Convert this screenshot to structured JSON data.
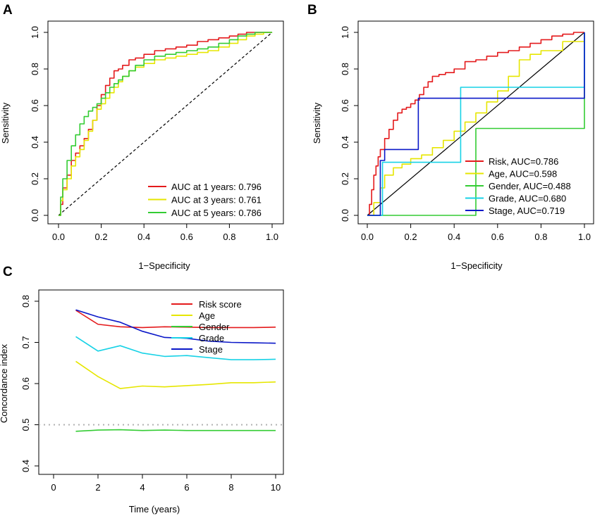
{
  "panels": {
    "A": {
      "letter": "A"
    },
    "B": {
      "letter": "B"
    },
    "C": {
      "letter": "C"
    }
  },
  "colors": {
    "red": "#e41a1c",
    "yellow": "#e6e600",
    "green": "#33cc33",
    "cyan": "#17d2e6",
    "blue": "#0a17c8",
    "gray": "#b0b0b0"
  },
  "chart_data": [
    {
      "id": "A",
      "type": "line",
      "title": "",
      "xlabel": "1−Specificity",
      "ylabel": "Sensitivity",
      "xlim": [
        0,
        1
      ],
      "ylim": [
        0,
        1
      ],
      "xticks": [
        "0.0",
        "0.2",
        "0.4",
        "0.6",
        "0.8",
        "1.0"
      ],
      "yticks": [
        "0.0",
        "0.2",
        "0.4",
        "0.6",
        "0.8",
        "1.0"
      ],
      "diagonal": "dashed",
      "legend_position": "bottom-right",
      "series": [
        {
          "name": "AUC at 1 years: 0.796",
          "color": "red",
          "x": [
            0,
            0.01,
            0.02,
            0.04,
            0.06,
            0.08,
            0.1,
            0.12,
            0.14,
            0.16,
            0.18,
            0.2,
            0.22,
            0.24,
            0.26,
            0.28,
            0.3,
            0.33,
            0.36,
            0.4,
            0.45,
            0.5,
            0.55,
            0.6,
            0.65,
            0.7,
            0.75,
            0.8,
            0.84,
            0.88,
            0.92,
            0.96,
            1.0
          ],
          "y": [
            0,
            0.06,
            0.15,
            0.22,
            0.3,
            0.34,
            0.38,
            0.42,
            0.47,
            0.52,
            0.6,
            0.66,
            0.71,
            0.75,
            0.79,
            0.8,
            0.82,
            0.85,
            0.86,
            0.88,
            0.9,
            0.91,
            0.92,
            0.93,
            0.95,
            0.96,
            0.97,
            0.98,
            0.99,
            1.0,
            1.0,
            1.0,
            1.0
          ]
        },
        {
          "name": "AUC at 3 years: 0.761",
          "color": "yellow",
          "x": [
            0,
            0.01,
            0.02,
            0.04,
            0.06,
            0.08,
            0.1,
            0.12,
            0.14,
            0.16,
            0.18,
            0.2,
            0.22,
            0.24,
            0.26,
            0.28,
            0.3,
            0.33,
            0.36,
            0.4,
            0.45,
            0.5,
            0.55,
            0.6,
            0.65,
            0.7,
            0.75,
            0.8,
            0.84,
            0.88,
            0.92,
            0.96,
            1.0
          ],
          "y": [
            0,
            0.08,
            0.14,
            0.2,
            0.27,
            0.32,
            0.36,
            0.41,
            0.46,
            0.52,
            0.58,
            0.61,
            0.64,
            0.67,
            0.7,
            0.73,
            0.76,
            0.79,
            0.81,
            0.83,
            0.85,
            0.86,
            0.87,
            0.88,
            0.89,
            0.9,
            0.92,
            0.94,
            0.96,
            0.98,
            0.99,
            1.0,
            1.0
          ]
        },
        {
          "name": "AUC at 5 years: 0.786",
          "color": "green",
          "x": [
            0,
            0.01,
            0.02,
            0.04,
            0.06,
            0.08,
            0.1,
            0.12,
            0.14,
            0.16,
            0.18,
            0.2,
            0.22,
            0.24,
            0.26,
            0.28,
            0.3,
            0.33,
            0.36,
            0.4,
            0.45,
            0.5,
            0.55,
            0.6,
            0.65,
            0.7,
            0.75,
            0.8,
            0.84,
            0.88,
            0.92,
            0.96,
            1.0
          ],
          "y": [
            0,
            0.1,
            0.2,
            0.3,
            0.38,
            0.44,
            0.5,
            0.54,
            0.57,
            0.59,
            0.61,
            0.64,
            0.67,
            0.7,
            0.72,
            0.74,
            0.76,
            0.79,
            0.82,
            0.85,
            0.87,
            0.88,
            0.89,
            0.9,
            0.91,
            0.92,
            0.94,
            0.96,
            0.98,
            0.99,
            1.0,
            1.0,
            1.0
          ]
        }
      ]
    },
    {
      "id": "B",
      "type": "line",
      "title": "",
      "xlabel": "1−Specificity",
      "ylabel": "Sensitivity",
      "xlim": [
        0,
        1
      ],
      "ylim": [
        0,
        1
      ],
      "xticks": [
        "0.0",
        "0.2",
        "0.4",
        "0.6",
        "0.8",
        "1.0"
      ],
      "yticks": [
        "0.0",
        "0.2",
        "0.4",
        "0.6",
        "0.8",
        "1.0"
      ],
      "diagonal": "solid",
      "legend_position": "bottom-right",
      "series": [
        {
          "name": "Risk, AUC=0.786",
          "color": "red",
          "x": [
            0,
            0.01,
            0.02,
            0.03,
            0.04,
            0.05,
            0.06,
            0.08,
            0.1,
            0.12,
            0.14,
            0.16,
            0.18,
            0.2,
            0.22,
            0.24,
            0.26,
            0.28,
            0.3,
            0.33,
            0.36,
            0.4,
            0.45,
            0.5,
            0.55,
            0.6,
            0.65,
            0.7,
            0.75,
            0.8,
            0.85,
            0.9,
            0.95,
            1.0
          ],
          "y": [
            0,
            0.06,
            0.14,
            0.22,
            0.27,
            0.32,
            0.36,
            0.42,
            0.47,
            0.52,
            0.56,
            0.58,
            0.59,
            0.61,
            0.63,
            0.66,
            0.7,
            0.73,
            0.76,
            0.77,
            0.78,
            0.8,
            0.84,
            0.85,
            0.87,
            0.89,
            0.9,
            0.92,
            0.94,
            0.96,
            0.98,
            0.99,
            1.0,
            1.0
          ]
        },
        {
          "name": "Age, AUC=0.598",
          "color": "yellow",
          "x": [
            0,
            0.03,
            0.06,
            0.08,
            0.12,
            0.16,
            0.2,
            0.25,
            0.3,
            0.35,
            0.4,
            0.45,
            0.5,
            0.55,
            0.6,
            0.65,
            0.7,
            0.75,
            0.8,
            0.9,
            1.0
          ],
          "y": [
            0,
            0.07,
            0.15,
            0.22,
            0.26,
            0.28,
            0.31,
            0.33,
            0.37,
            0.41,
            0.46,
            0.51,
            0.56,
            0.62,
            0.68,
            0.76,
            0.85,
            0.88,
            0.9,
            0.95,
            1.0
          ]
        },
        {
          "name": "Gender, AUC=0.488",
          "color": "green",
          "x": [
            0,
            0.5,
            1.0
          ],
          "y": [
            0,
            0.475,
            1.0
          ]
        },
        {
          "name": "Grade, AUC=0.680",
          "color": "cyan",
          "x": [
            0,
            0.07,
            0.43,
            1.0
          ],
          "y": [
            0,
            0.29,
            0.7,
            1.0
          ]
        },
        {
          "name": "Stage, AUC=0.719",
          "color": "blue",
          "x": [
            0,
            0.06,
            0.08,
            0.235,
            1.0
          ],
          "y": [
            0,
            0.3,
            0.36,
            0.64,
            1.0
          ]
        }
      ]
    },
    {
      "id": "C",
      "type": "line",
      "title": "",
      "xlabel": "Time (years)",
      "ylabel": "Concordance index",
      "xlim": [
        0,
        10
      ],
      "ylim": [
        0.4,
        0.8
      ],
      "xticks": [
        "0",
        "2",
        "4",
        "6",
        "8",
        "10"
      ],
      "yticks": [
        "0.4",
        "0.5",
        "0.6",
        "0.7",
        "0.8"
      ],
      "reference_line": 0.5,
      "legend_position": "top-right",
      "x": [
        1,
        2,
        3,
        4,
        5,
        6,
        7,
        8,
        9,
        10
      ],
      "series": [
        {
          "name": "Risk score",
          "color": "red",
          "values": [
            0.778,
            0.744,
            0.738,
            0.736,
            0.738,
            0.737,
            0.736,
            0.736,
            0.736,
            0.737
          ]
        },
        {
          "name": "Age",
          "color": "yellow",
          "values": [
            0.654,
            0.617,
            0.588,
            0.594,
            0.592,
            0.595,
            0.598,
            0.602,
            0.602,
            0.604
          ]
        },
        {
          "name": "Gender",
          "color": "green",
          "values": [
            0.484,
            0.487,
            0.488,
            0.486,
            0.487,
            0.486,
            0.486,
            0.486,
            0.486,
            0.486
          ]
        },
        {
          "name": "Grade",
          "color": "cyan",
          "values": [
            0.714,
            0.679,
            0.692,
            0.674,
            0.666,
            0.668,
            0.663,
            0.658,
            0.658,
            0.659
          ]
        },
        {
          "name": "Stage",
          "color": "blue",
          "values": [
            0.779,
            0.762,
            0.749,
            0.727,
            0.712,
            0.71,
            0.703,
            0.7,
            0.699,
            0.698
          ]
        }
      ]
    }
  ]
}
